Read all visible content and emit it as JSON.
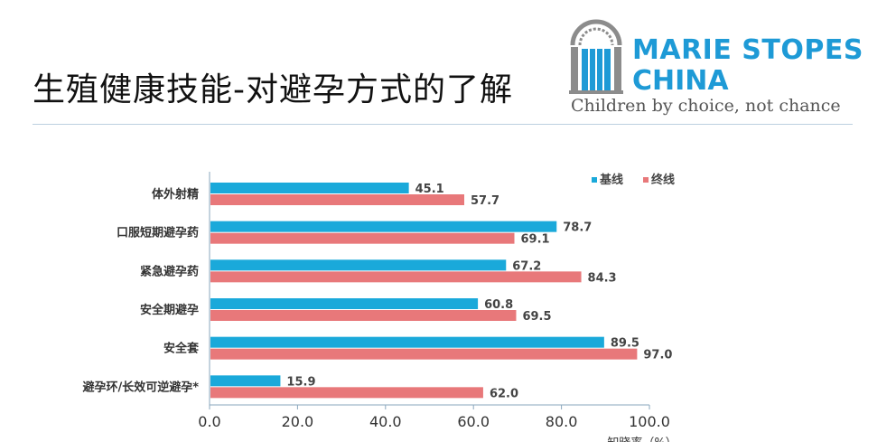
{
  "header": {
    "title": "生殖健康技能-对避孕方式的了解"
  },
  "logo": {
    "line1": "MARIE STOPES",
    "line2": "CHINA",
    "tagline": "Children by choice, not chance"
  },
  "colors": {
    "baseline": "#1aa9da",
    "endline": "#e8787a",
    "brand": "#1e9ad6",
    "axis": "#8aa7bd"
  },
  "chart_data": {
    "type": "bar",
    "orientation": "horizontal",
    "categories": [
      "体外射精",
      "口服短期避孕药",
      "紧急避孕药",
      "安全期避孕",
      "安全套",
      "避孕环/长效可逆避孕*"
    ],
    "series": [
      {
        "name": "基线",
        "values": [
          45.1,
          78.7,
          67.2,
          60.8,
          89.5,
          15.9
        ]
      },
      {
        "name": "终线",
        "values": [
          57.7,
          69.1,
          84.3,
          69.5,
          97.0,
          62.0
        ]
      }
    ],
    "xlim": [
      0,
      100
    ],
    "xticks": [
      "0.0",
      "20.0",
      "40.0",
      "60.0",
      "80.0",
      "100.0"
    ],
    "xlabel": "知晓率（%）",
    "legend_position": "top-right",
    "grid": false
  }
}
